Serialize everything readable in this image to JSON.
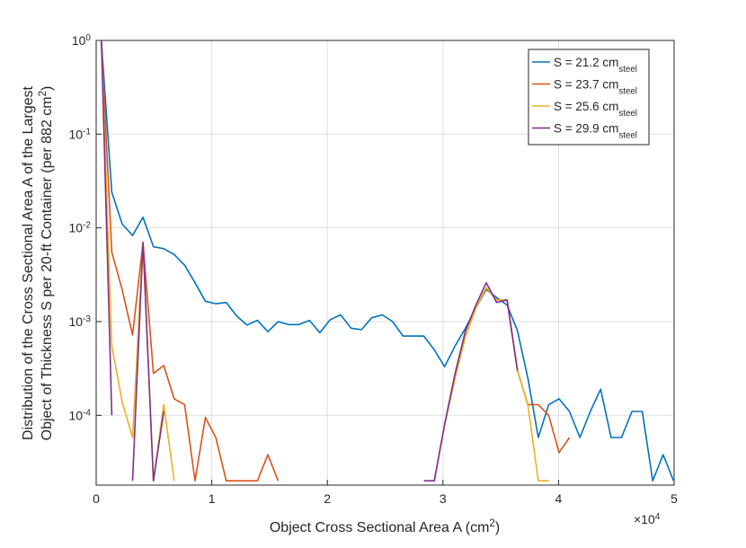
{
  "chart_data": {
    "type": "line",
    "xlabel": "Object Cross Sectional Area A (cm^2)",
    "ylabel": [
      "Distribution of the Cross Sectional Area A of the Largest",
      "Object of Thickness S per 20-ft Container (per 882 cm^2)"
    ],
    "x_multiplier": "×10^4",
    "x": [
      450,
      1350,
      2250,
      3150,
      4050,
      4950,
      5850,
      6750,
      7650,
      8550,
      9450,
      10350,
      11250,
      12150,
      13050,
      13950,
      14850,
      15750,
      16650,
      17550,
      18450,
      19350,
      20250,
      21150,
      22050,
      22950,
      23850,
      24750,
      25650,
      26550,
      27450,
      28350,
      29250,
      30150,
      31050,
      31950,
      32850,
      33750,
      34650,
      35550,
      36450,
      37350,
      38250,
      39150,
      40050,
      40950,
      41850,
      42750,
      43650,
      44550,
      45450,
      46350,
      47250,
      48150,
      49050,
      49950
    ],
    "xlim": [
      0,
      50000
    ],
    "xticks": [
      0,
      {
        "value": 10000,
        "label": "1"
      },
      {
        "value": 20000,
        "label": "2"
      },
      {
        "value": 30000,
        "label": "3"
      },
      {
        "value": 40000,
        "label": "4"
      },
      {
        "value": 50000,
        "label": "5"
      }
    ],
    "ylim": [
      1.8e-05,
      1
    ],
    "yticks": [
      {
        "value": 0.0001,
        "label": "10^-4"
      },
      {
        "value": 0.001,
        "label": "10^-3"
      },
      {
        "value": 0.01,
        "label": "10^-2"
      },
      {
        "value": 0.1,
        "label": "10^-1"
      },
      {
        "value": 1,
        "label": "10^0"
      }
    ],
    "log_y": true,
    "grid": true,
    "legend": "upper right",
    "series": [
      {
        "name": "S = 21.2 cm_steel",
        "color": "#0072bd",
        "values": [
          1,
          0.024,
          0.011,
          0.0083,
          0.013,
          0.0063,
          0.006,
          0.0052,
          0.004,
          0.0026,
          0.00165,
          0.00155,
          0.0016,
          0.00115,
          0.00092,
          0.00103,
          0.00078,
          0.001,
          0.00093,
          0.00093,
          0.00103,
          0.00076,
          0.00105,
          0.00118,
          0.00085,
          0.00082,
          0.0011,
          0.00118,
          0.001,
          0.0007,
          0.0007,
          0.0007,
          0.0005,
          0.00033,
          0.00055,
          0.00085,
          0.0014,
          0.0022,
          0.0018,
          0.0015,
          0.0008,
          0.00025,
          5.8e-05,
          0.00013,
          0.00015,
          0.00011,
          5.8e-05,
          0.00011,
          0.00019,
          5.8e-05,
          5.8e-05,
          0.00011,
          0.00011,
          2e-05,
          3.8e-05,
          2e-05
        ]
      },
      {
        "name": "S = 23.7 cm_steel",
        "color": "#d95319",
        "values": [
          1,
          0.0055,
          0.0022,
          0.00072,
          0.007,
          0.00028,
          0.00034,
          0.00015,
          0.00013,
          2e-05,
          9.5e-05,
          5.8e-05,
          2e-05,
          2e-05,
          2e-05,
          2e-05,
          3.8e-05,
          2e-05,
          null,
          null,
          null,
          null,
          null,
          null,
          null,
          null,
          null,
          null,
          null,
          null,
          null,
          null,
          null,
          8e-05,
          0.00025,
          0.0007,
          0.0014,
          0.0023,
          0.0017,
          0.0017,
          0.0003,
          0.00013,
          0.00013,
          0.0001,
          4e-05,
          5.8e-05,
          null,
          null,
          null,
          null,
          null,
          null,
          null,
          null,
          null,
          null
        ]
      },
      {
        "name": "S = 25.6 cm_steel",
        "color": "#edb120",
        "values": [
          1,
          0.00055,
          0.00014,
          5.8e-05,
          0.007,
          2e-05,
          0.00013,
          2e-05,
          null,
          null,
          null,
          null,
          null,
          null,
          null,
          null,
          null,
          null,
          null,
          null,
          null,
          null,
          null,
          null,
          null,
          null,
          null,
          null,
          null,
          null,
          null,
          null,
          2e-05,
          8e-05,
          0.00025,
          0.0007,
          0.0014,
          0.0023,
          0.0017,
          0.0017,
          0.0003,
          0.00013,
          2e-05,
          2e-05,
          null,
          null,
          null,
          null,
          null,
          null,
          null,
          null,
          null,
          null,
          null,
          null
        ]
      },
      {
        "name": "S = 29.9 cm_steel",
        "color": "#7e2f8e",
        "values": [
          1,
          0.0001,
          null,
          2e-05,
          0.007,
          2e-05,
          0.00011,
          null,
          null,
          null,
          null,
          null,
          null,
          null,
          null,
          null,
          null,
          null,
          null,
          null,
          null,
          null,
          null,
          null,
          null,
          null,
          null,
          null,
          null,
          null,
          null,
          2e-05,
          2e-05,
          8e-05,
          0.00028,
          0.0008,
          0.0015,
          0.0026,
          0.0016,
          0.0017,
          0.0003,
          null,
          null,
          null,
          null,
          null,
          null,
          null,
          null,
          null,
          null,
          null,
          null,
          null,
          null,
          null
        ]
      }
    ]
  }
}
